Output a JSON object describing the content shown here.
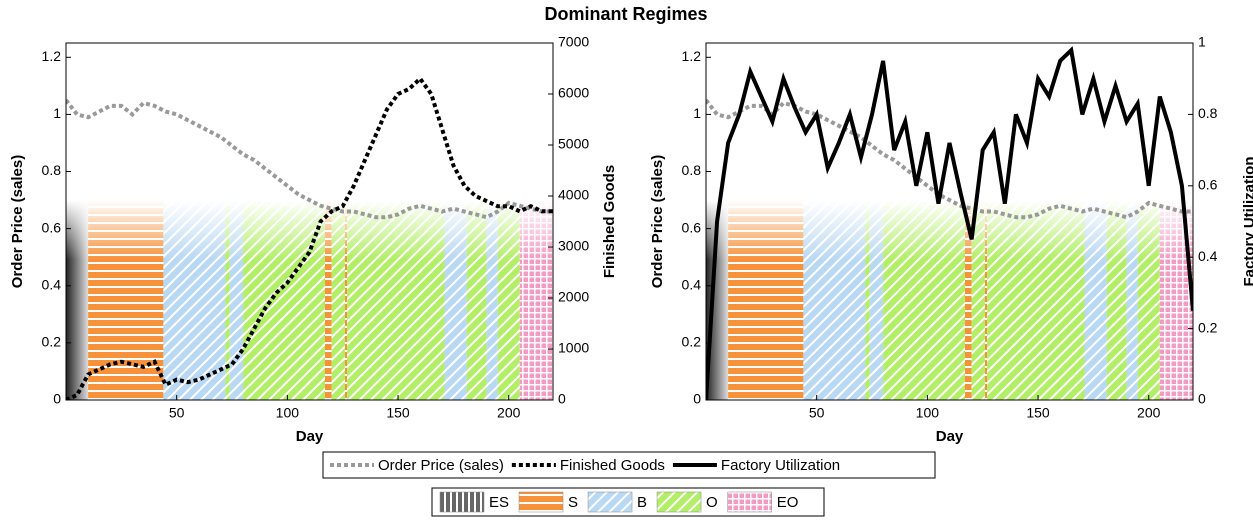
{
  "title": "Dominant Regimes",
  "regimes": [
    {
      "name": "ES",
      "color": "#555555"
    },
    {
      "name": "S",
      "color": "#f7923a"
    },
    {
      "name": "B",
      "color": "#b9d8f3"
    },
    {
      "name": "O",
      "color": "#b2ee66"
    },
    {
      "name": "EO",
      "color": "#f49bc4"
    }
  ],
  "regime_spans": [
    {
      "regime": 0,
      "start": 0,
      "end": 10
    },
    {
      "regime": 1,
      "start": 10,
      "end": 44
    },
    {
      "regime": 2,
      "start": 44,
      "end": 72
    },
    {
      "regime": 3,
      "start": 72,
      "end": 74
    },
    {
      "regime": 2,
      "start": 74,
      "end": 80
    },
    {
      "regime": 3,
      "start": 80,
      "end": 117
    },
    {
      "regime": 1,
      "start": 117,
      "end": 120
    },
    {
      "regime": 3,
      "start": 120,
      "end": 126
    },
    {
      "regime": 1,
      "start": 126,
      "end": 127
    },
    {
      "regime": 3,
      "start": 127,
      "end": 171
    },
    {
      "regime": 2,
      "start": 171,
      "end": 181
    },
    {
      "regime": 3,
      "start": 181,
      "end": 190
    },
    {
      "regime": 2,
      "start": 190,
      "end": 195
    },
    {
      "regime": 3,
      "start": 195,
      "end": 205
    },
    {
      "regime": 4,
      "start": 205,
      "end": 220
    }
  ],
  "chart_data": [
    {
      "type": "line",
      "x_label": "Day",
      "y_label": "Order Price (sales)",
      "y2_label": "Finished Goods",
      "x": [
        0,
        5,
        10,
        15,
        20,
        25,
        30,
        35,
        40,
        45,
        50,
        55,
        60,
        65,
        70,
        75,
        80,
        85,
        90,
        95,
        100,
        105,
        110,
        115,
        120,
        125,
        130,
        135,
        140,
        145,
        150,
        155,
        160,
        165,
        170,
        175,
        180,
        185,
        190,
        195,
        200,
        205,
        210,
        215,
        220
      ],
      "xlim": [
        0,
        220
      ],
      "xticks": [
        50,
        100,
        150,
        200
      ],
      "ylim": [
        0,
        1.25
      ],
      "yticks": [
        0,
        0.2,
        0.4,
        0.6,
        0.8,
        1,
        1.2
      ],
      "y2lim": [
        0,
        7000
      ],
      "y2ticks": [
        0,
        1000,
        2000,
        3000,
        4000,
        5000,
        6000,
        7000
      ],
      "series": [
        {
          "name": "Order Price (sales)",
          "color": "#999999",
          "style": "dotted",
          "values": [
            1.05,
            1.0,
            0.99,
            1.01,
            1.03,
            1.03,
            1.0,
            1.04,
            1.03,
            1.01,
            1.0,
            0.98,
            0.96,
            0.94,
            0.92,
            0.89,
            0.86,
            0.84,
            0.81,
            0.78,
            0.75,
            0.72,
            0.7,
            0.68,
            0.67,
            0.66,
            0.66,
            0.65,
            0.64,
            0.64,
            0.65,
            0.67,
            0.68,
            0.67,
            0.66,
            0.67,
            0.66,
            0.65,
            0.64,
            0.66,
            0.69,
            0.68,
            0.67,
            0.66,
            0.66
          ]
        },
        {
          "name": "Finished Goods",
          "color": "#000000",
          "style": "dotted",
          "axis": "y2",
          "values": [
            0,
            100,
            500,
            600,
            700,
            750,
            700,
            650,
            750,
            300,
            400,
            350,
            400,
            500,
            600,
            700,
            1000,
            1400,
            1800,
            2100,
            2300,
            2600,
            2900,
            3500,
            3700,
            3800,
            4200,
            4700,
            5200,
            5700,
            6000,
            6100,
            6300,
            6000,
            5300,
            4600,
            4200,
            4000,
            3900,
            3800,
            3800,
            3700,
            3800,
            3700,
            3700
          ]
        }
      ]
    },
    {
      "type": "line",
      "x_label": "Day",
      "y_label": "Order Price (sales)",
      "y2_label": "Factory Utilization",
      "x": [
        0,
        5,
        10,
        15,
        20,
        25,
        30,
        35,
        40,
        45,
        50,
        55,
        60,
        65,
        70,
        75,
        80,
        85,
        90,
        95,
        100,
        105,
        110,
        115,
        120,
        125,
        130,
        135,
        140,
        145,
        150,
        155,
        160,
        165,
        170,
        175,
        180,
        185,
        190,
        195,
        200,
        205,
        210,
        215,
        220
      ],
      "xlim": [
        0,
        220
      ],
      "xticks": [
        50,
        100,
        150,
        200
      ],
      "ylim": [
        0,
        1.25
      ],
      "yticks": [
        0,
        0.2,
        0.4,
        0.6,
        0.8,
        1,
        1.2
      ],
      "y2lim": [
        0,
        1
      ],
      "y2ticks": [
        0,
        0.2,
        0.4,
        0.6,
        0.8,
        1
      ],
      "series": [
        {
          "name": "Order Price (sales)",
          "color": "#999999",
          "style": "dotted",
          "values": [
            1.05,
            1.0,
            0.99,
            1.01,
            1.03,
            1.03,
            1.0,
            1.04,
            1.03,
            1.01,
            1.0,
            0.98,
            0.96,
            0.94,
            0.92,
            0.89,
            0.86,
            0.84,
            0.81,
            0.78,
            0.75,
            0.72,
            0.7,
            0.68,
            0.67,
            0.66,
            0.66,
            0.65,
            0.64,
            0.64,
            0.65,
            0.67,
            0.68,
            0.67,
            0.66,
            0.67,
            0.66,
            0.65,
            0.64,
            0.66,
            0.69,
            0.68,
            0.67,
            0.66,
            0.66
          ]
        },
        {
          "name": "Factory Utilization",
          "color": "#000000",
          "style": "solid",
          "axis": "y2",
          "values": [
            0,
            0.5,
            0.72,
            0.8,
            0.92,
            0.85,
            0.78,
            0.9,
            0.82,
            0.75,
            0.8,
            0.65,
            0.72,
            0.8,
            0.68,
            0.8,
            0.95,
            0.7,
            0.78,
            0.6,
            0.75,
            0.55,
            0.72,
            0.58,
            0.45,
            0.7,
            0.75,
            0.55,
            0.8,
            0.72,
            0.9,
            0.85,
            0.95,
            0.98,
            0.8,
            0.9,
            0.78,
            0.88,
            0.78,
            0.83,
            0.6,
            0.85,
            0.75,
            0.6,
            0.25
          ]
        }
      ]
    }
  ]
}
